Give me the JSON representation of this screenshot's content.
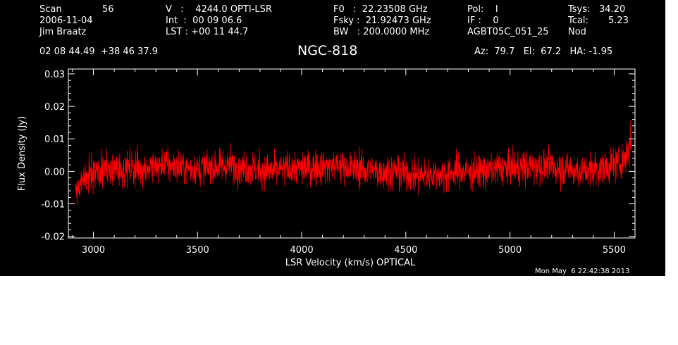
{
  "header": {
    "scan_label": "Scan",
    "scan_value": "56",
    "date": "2006-11-04",
    "observer": "Jim Braatz",
    "v_line": "V   :    4244.0 OPTI-LSR",
    "int_line": "Int  :  00 09 06.6",
    "lst_line": "LST : +00 11 44.7",
    "f0_line": "F0   :  22.23508 GHz",
    "fsky_line": "Fsky :  21.92473 GHz",
    "bw_line": "BW   : 200.0000 MHz",
    "pol_line": "Pol:    I",
    "if_line": "IF :    0",
    "project": "AGBT05C_051_25",
    "tsys_label": "Tsys:",
    "tsys_value": "34.20",
    "tcal_label": "Tcal:",
    "tcal_value": "5.23",
    "mode": "Nod",
    "coords": "02 08 44.49  +38 46 37.9",
    "az_el_ha": "Az:  79.7   El:  67.2   HA: -1.95"
  },
  "chart_data": {
    "type": "line",
    "title": "NGC-818",
    "xlabel": "LSR Velocity (km/s) OPTICAL",
    "ylabel": "Flux Density (Jy)",
    "xlim": [
      2880,
      5600
    ],
    "ylim": [
      -0.0205,
      0.0315
    ],
    "x_ticks": [
      3000,
      3500,
      4000,
      4500,
      5000,
      5500
    ],
    "x_tick_labels": [
      "3000",
      "3500",
      "4000",
      "4500",
      "5000",
      "5500"
    ],
    "y_ticks": [
      -0.02,
      -0.01,
      0.0,
      0.01,
      0.02,
      0.03
    ],
    "y_tick_labels": [
      "-0.02",
      "-0.01",
      "0.00",
      "0.01",
      "0.02",
      "0.03"
    ],
    "grid": false,
    "line_color": "#ff0000",
    "series": [
      {
        "x": [
          2915,
          2930,
          2950,
          2980,
          3050,
          3150,
          3250,
          3350,
          3450,
          3550,
          3650,
          3750,
          3850,
          3950,
          4050,
          4150,
          4250,
          4350,
          4450,
          4550,
          4650,
          4750,
          4850,
          4950,
          5050,
          5150,
          5250,
          5350,
          5450,
          5500,
          5530,
          5550,
          5565,
          5575,
          5583
        ],
        "y": [
          -0.006,
          -0.004,
          -0.002,
          -0.001,
          0.0,
          0.001,
          0.001,
          0.002,
          0.001,
          0.001,
          0.002,
          0.001,
          0.0,
          0.001,
          0.001,
          0.002,
          0.001,
          0.0,
          0.0,
          -0.001,
          -0.001,
          0.0,
          0.0,
          0.001,
          0.001,
          0.002,
          0.001,
          0.0,
          0.001,
          0.002,
          0.003,
          0.004,
          0.006,
          0.008,
          0.011
        ],
        "noise_rms": 0.0048
      }
    ]
  },
  "footer": {
    "timestamp": "Mon May  6 22:42:38 2013"
  }
}
